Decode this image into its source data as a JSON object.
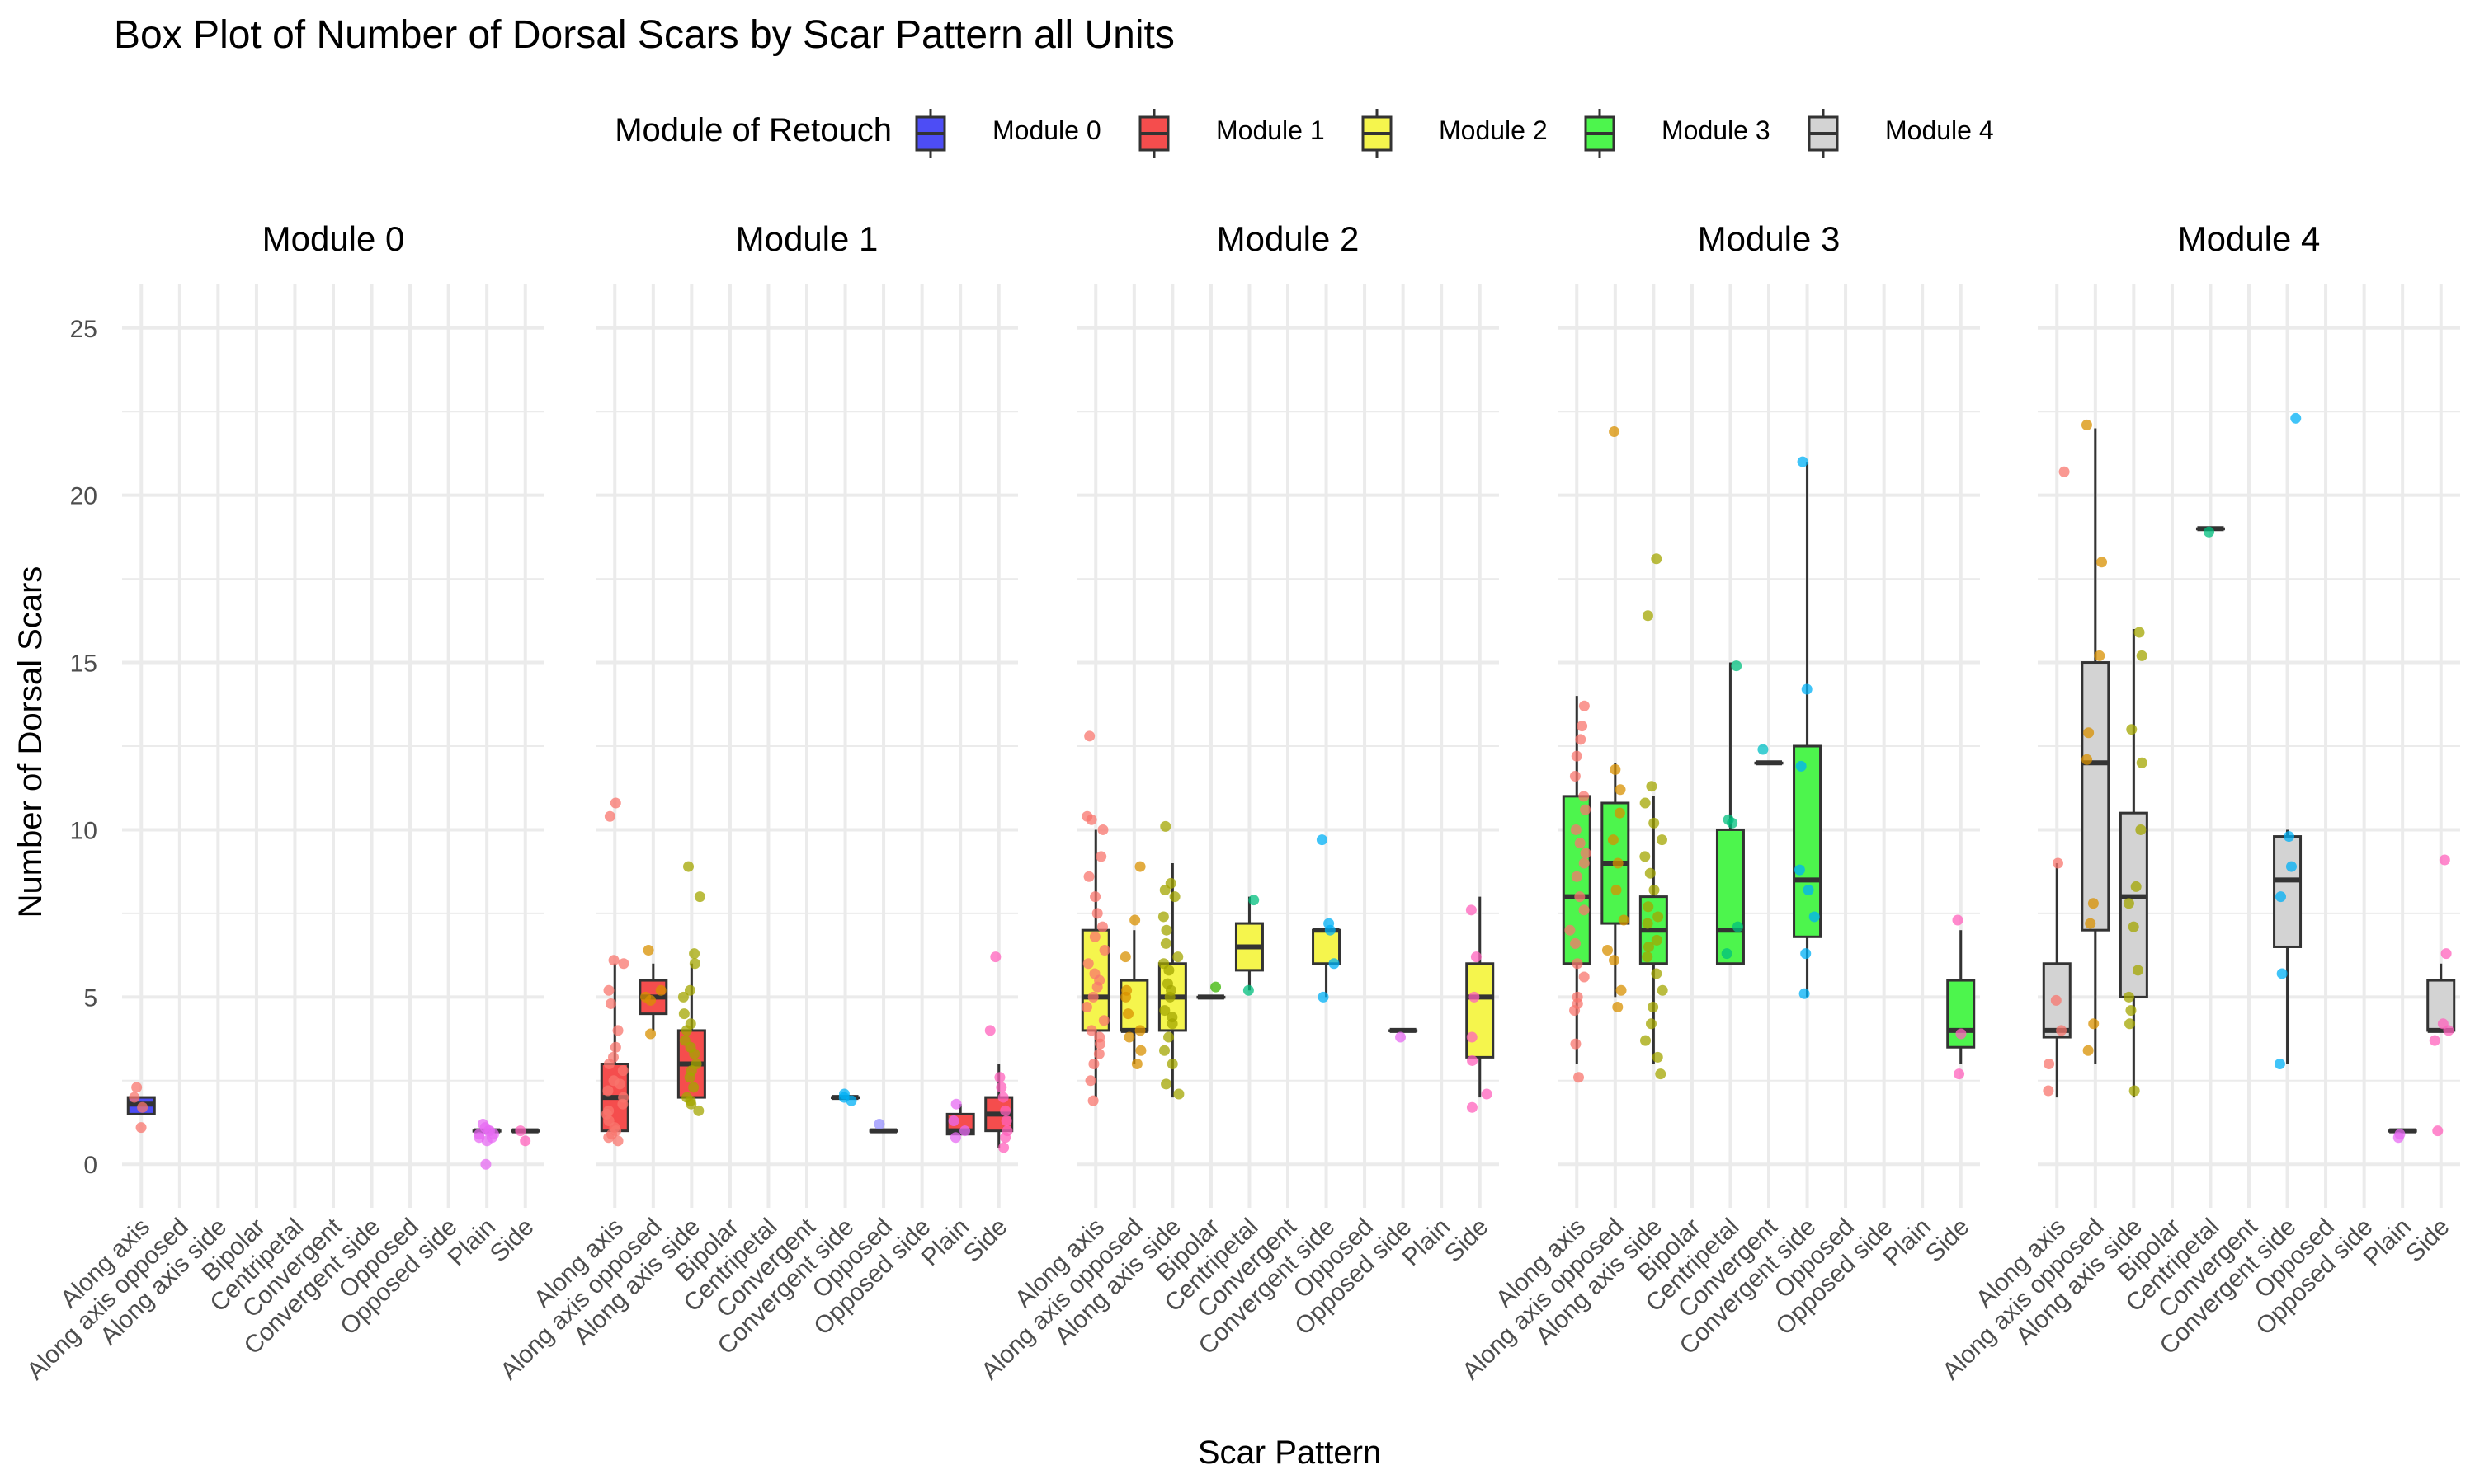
{
  "chart_data": {
    "type": "box",
    "title": "Box Plot of Number of Dorsal Scars by Scar Pattern all Units",
    "xlabel": "Scar Pattern",
    "ylabel": "Number of Dorsal Scars",
    "ylim": [
      -1.3,
      26.3
    ],
    "yticks": [
      0,
      5,
      10,
      15,
      20,
      25
    ],
    "grid": true,
    "legend": {
      "title": "Module of Retouch",
      "position": "top",
      "entries": [
        "Module 0",
        "Module 1",
        "Module 2",
        "Module 3",
        "Module 4"
      ]
    },
    "fill_colors": {
      "Module 0": "#4d4df5",
      "Module 1": "#f54d4d",
      "Module 2": "#f5f54d",
      "Module 3": "#4df54d",
      "Module 4": "#d3d3d3"
    },
    "point_colors": {
      "Along axis": "#f8766d",
      "Along axis opposed": "#d89000",
      "Along axis side": "#a3a500",
      "Bipolar": "#39b600",
      "Centripetal": "#00bf7d",
      "Convergent": "#00bfc4",
      "Convergent side": "#00b0f6",
      "Opposed": "#9590ff",
      "Opposed side": "#e76bf3",
      "Plain": "#e76bf3",
      "Side": "#ff62bc"
    },
    "categories": [
      "Along axis",
      "Along axis opposed",
      "Along axis side",
      "Bipolar",
      "Centripetal",
      "Convergent",
      "Convergent side",
      "Opposed",
      "Opposed side",
      "Plain",
      "Side"
    ],
    "panels": [
      {
        "name": "Module 0",
        "boxes": [
          {
            "category": "Along axis",
            "q1": 1.5,
            "median": 1.8,
            "q3": 2.0,
            "whisker_low": 1.5,
            "whisker_high": 2.0,
            "points": [
              1.1,
              1.7,
              2.0,
              2.3
            ]
          },
          {
            "category": "Plain",
            "q1": 1.0,
            "median": 1.0,
            "q3": 1.0,
            "whisker_low": 1.0,
            "whisker_high": 1.0,
            "points": [
              0.0,
              0.7,
              0.8,
              0.9,
              1.0,
              1.1,
              1.2,
              0.8,
              1.0,
              0.9
            ]
          },
          {
            "category": "Side",
            "q1": 1.0,
            "median": 1.0,
            "q3": 1.0,
            "whisker_low": 1.0,
            "whisker_high": 1.0,
            "points": [
              0.7,
              1.0
            ]
          }
        ]
      },
      {
        "name": "Module 1",
        "boxes": [
          {
            "category": "Along axis",
            "q1": 1.0,
            "median": 2.0,
            "q3": 3.0,
            "whisker_low": 1.0,
            "whisker_high": 6.0,
            "points": [
              0.7,
              0.8,
              1.0,
              1.1,
              1.3,
              1.5,
              1.8,
              2.0,
              2.2,
              2.5,
              2.8,
              3.0,
              3.2,
              3.5,
              4.0,
              4.8,
              5.2,
              6.0,
              6.1,
              10.4,
              10.8,
              0.9,
              1.6,
              2.4
            ]
          },
          {
            "category": "Along axis opposed",
            "q1": 4.5,
            "median": 5.0,
            "q3": 5.5,
            "whisker_low": 4.0,
            "whisker_high": 6.0,
            "points": [
              3.9,
              4.9,
              5.0,
              5.2,
              6.4
            ]
          },
          {
            "category": "Along axis side",
            "q1": 2.0,
            "median": 3.0,
            "q3": 4.0,
            "whisker_low": 2.0,
            "whisker_high": 6.0,
            "points": [
              1.6,
              1.8,
              2.0,
              2.3,
              2.6,
              3.0,
              3.3,
              3.7,
              4.0,
              4.2,
              4.5,
              5.0,
              5.2,
              6.0,
              6.3,
              8.0,
              8.9,
              1.9,
              2.8,
              3.5
            ]
          },
          {
            "category": "Convergent side",
            "q1": 2.0,
            "median": 2.0,
            "q3": 2.0,
            "whisker_low": 2.0,
            "whisker_high": 2.0,
            "points": [
              1.9,
              2.1,
              2.0
            ]
          },
          {
            "category": "Opposed",
            "q1": 1.0,
            "median": 1.0,
            "q3": 1.0,
            "whisker_low": 1.0,
            "whisker_high": 1.0,
            "points": [
              1.2
            ]
          },
          {
            "category": "Plain",
            "q1": 0.9,
            "median": 1.0,
            "q3": 1.5,
            "whisker_low": 0.9,
            "whisker_high": 1.8,
            "points": [
              0.8,
              1.0,
              1.3,
              1.8
            ]
          },
          {
            "category": "Side",
            "q1": 1.0,
            "median": 1.5,
            "q3": 2.0,
            "whisker_low": 0.5,
            "whisker_high": 3.0,
            "points": [
              0.5,
              0.8,
              1.0,
              1.3,
              1.6,
              2.0,
              2.3,
              2.6,
              4.0,
              6.2
            ]
          }
        ]
      },
      {
        "name": "Module 2",
        "boxes": [
          {
            "category": "Along axis",
            "q1": 4.0,
            "median": 5.0,
            "q3": 7.0,
            "whisker_low": 2.0,
            "whisker_high": 10.0,
            "points": [
              1.9,
              2.5,
              3.0,
              3.3,
              3.6,
              4.0,
              4.3,
              4.7,
              5.0,
              5.3,
              5.7,
              6.0,
              6.4,
              6.8,
              7.1,
              7.5,
              8.0,
              8.6,
              9.2,
              10.0,
              10.3,
              10.4,
              12.8,
              3.8,
              5.5
            ]
          },
          {
            "category": "Along axis opposed",
            "q1": 4.0,
            "median": 4.0,
            "q3": 5.5,
            "whisker_low": 3.0,
            "whisker_high": 7.0,
            "points": [
              3.0,
              3.4,
              3.8,
              4.0,
              4.5,
              5.0,
              5.2,
              6.2,
              7.3,
              8.9
            ]
          },
          {
            "category": "Along axis side",
            "q1": 4.0,
            "median": 5.0,
            "q3": 6.0,
            "whisker_low": 2.0,
            "whisker_high": 9.0,
            "points": [
              2.1,
              2.4,
              3.0,
              3.4,
              3.8,
              4.2,
              4.6,
              5.0,
              5.4,
              5.8,
              6.2,
              6.6,
              7.0,
              7.4,
              8.0,
              8.2,
              8.4,
              10.1,
              4.4,
              5.2,
              6.0
            ]
          },
          {
            "category": "Bipolar",
            "q1": 5.0,
            "median": 5.0,
            "q3": 5.0,
            "whisker_low": 5.0,
            "whisker_high": 5.0,
            "points": [
              5.3
            ]
          },
          {
            "category": "Centripetal",
            "q1": 5.8,
            "median": 6.5,
            "q3": 7.2,
            "whisker_low": 5.2,
            "whisker_high": 8.0,
            "points": [
              5.2,
              7.9
            ]
          },
          {
            "category": "Convergent side",
            "q1": 6.0,
            "median": 7.0,
            "q3": 7.0,
            "whisker_low": 5.0,
            "whisker_high": 7.0,
            "points": [
              5.0,
              6.0,
              7.0,
              7.2,
              9.7
            ]
          },
          {
            "category": "Opposed side",
            "q1": 4.0,
            "median": 4.0,
            "q3": 4.0,
            "whisker_low": 4.0,
            "whisker_high": 4.0,
            "points": [
              3.8
            ]
          },
          {
            "category": "Side",
            "q1": 3.2,
            "median": 5.0,
            "q3": 6.0,
            "whisker_low": 2.0,
            "whisker_high": 8.0,
            "points": [
              1.7,
              2.1,
              3.1,
              3.8,
              5.0,
              6.2,
              7.6
            ]
          }
        ]
      },
      {
        "name": "Module 3",
        "boxes": [
          {
            "category": "Along axis",
            "q1": 6.0,
            "median": 8.0,
            "q3": 11.0,
            "whisker_low": 3.0,
            "whisker_high": 14.0,
            "points": [
              2.6,
              3.6,
              4.6,
              5.0,
              5.6,
              6.0,
              6.6,
              7.0,
              7.6,
              8.0,
              8.6,
              9.0,
              9.6,
              10.0,
              10.6,
              11.0,
              11.6,
              12.2,
              12.7,
              13.1,
              13.7,
              4.8,
              9.3
            ]
          },
          {
            "category": "Along axis opposed",
            "q1": 7.2,
            "median": 9.0,
            "q3": 10.8,
            "whisker_low": 5.0,
            "whisker_high": 12.0,
            "points": [
              4.7,
              5.2,
              6.1,
              6.4,
              7.3,
              8.2,
              9.0,
              9.7,
              10.5,
              11.2,
              11.8,
              21.9
            ]
          },
          {
            "category": "Along axis side",
            "q1": 6.0,
            "median": 7.0,
            "q3": 8.0,
            "whisker_low": 3.0,
            "whisker_high": 11.0,
            "points": [
              2.7,
              3.2,
              3.7,
              4.2,
              4.7,
              5.2,
              5.7,
              6.2,
              6.7,
              7.2,
              7.7,
              8.2,
              8.7,
              9.2,
              9.7,
              10.2,
              10.8,
              11.3,
              16.4,
              18.1,
              6.5,
              7.4
            ]
          },
          {
            "category": "Centripetal",
            "q1": 6.0,
            "median": 7.0,
            "q3": 10.0,
            "whisker_low": 6.0,
            "whisker_high": 15.0,
            "points": [
              6.3,
              7.1,
              10.2,
              10.3,
              14.9
            ]
          },
          {
            "category": "Convergent",
            "q1": 12.0,
            "median": 12.0,
            "q3": 12.0,
            "whisker_low": 12.0,
            "whisker_high": 12.0,
            "points": [
              12.4
            ]
          },
          {
            "category": "Convergent side",
            "q1": 6.8,
            "median": 8.5,
            "q3": 12.5,
            "whisker_low": 5.0,
            "whisker_high": 21.0,
            "points": [
              5.1,
              6.3,
              7.4,
              8.2,
              8.8,
              11.9,
              14.2,
              21.0
            ]
          },
          {
            "category": "Side",
            "q1": 3.5,
            "median": 4.0,
            "q3": 5.5,
            "whisker_low": 3.0,
            "whisker_high": 7.0,
            "points": [
              2.7,
              3.9,
              7.3
            ]
          }
        ]
      },
      {
        "name": "Module 4",
        "boxes": [
          {
            "category": "Along axis",
            "q1": 3.8,
            "median": 4.0,
            "q3": 6.0,
            "whisker_low": 2.0,
            "whisker_high": 9.0,
            "points": [
              2.2,
              3.0,
              4.0,
              4.9,
              9.0,
              20.7
            ]
          },
          {
            "category": "Along axis opposed",
            "q1": 7.0,
            "median": 12.0,
            "q3": 15.0,
            "whisker_low": 3.0,
            "whisker_high": 22.0,
            "points": [
              3.4,
              4.2,
              7.2,
              7.8,
              12.1,
              12.9,
              15.2,
              18.0,
              22.1
            ]
          },
          {
            "category": "Along axis side",
            "q1": 5.0,
            "median": 8.0,
            "q3": 10.5,
            "whisker_low": 2.0,
            "whisker_high": 16.0,
            "points": [
              2.2,
              4.2,
              4.6,
              5.0,
              5.8,
              7.1,
              7.8,
              8.3,
              10.0,
              12.0,
              13.0,
              15.2,
              15.9
            ]
          },
          {
            "category": "Centripetal",
            "q1": 19.0,
            "median": 19.0,
            "q3": 19.0,
            "whisker_low": 19.0,
            "whisker_high": 19.0,
            "points": [
              18.9
            ]
          },
          {
            "category": "Convergent side",
            "q1": 6.5,
            "median": 8.5,
            "q3": 9.8,
            "whisker_low": 3.0,
            "whisker_high": 10.0,
            "points": [
              3.0,
              5.7,
              8.0,
              8.9,
              9.8,
              22.3
            ]
          },
          {
            "category": "Plain",
            "q1": 1.0,
            "median": 1.0,
            "q3": 1.0,
            "whisker_low": 1.0,
            "whisker_high": 1.0,
            "points": [
              0.8,
              0.9
            ]
          },
          {
            "category": "Side",
            "q1": 4.0,
            "median": 4.0,
            "q3": 5.5,
            "whisker_low": 4.0,
            "whisker_high": 6.0,
            "points": [
              1.0,
              3.7,
              4.0,
              4.2,
              6.3,
              9.1
            ]
          }
        ]
      }
    ]
  }
}
